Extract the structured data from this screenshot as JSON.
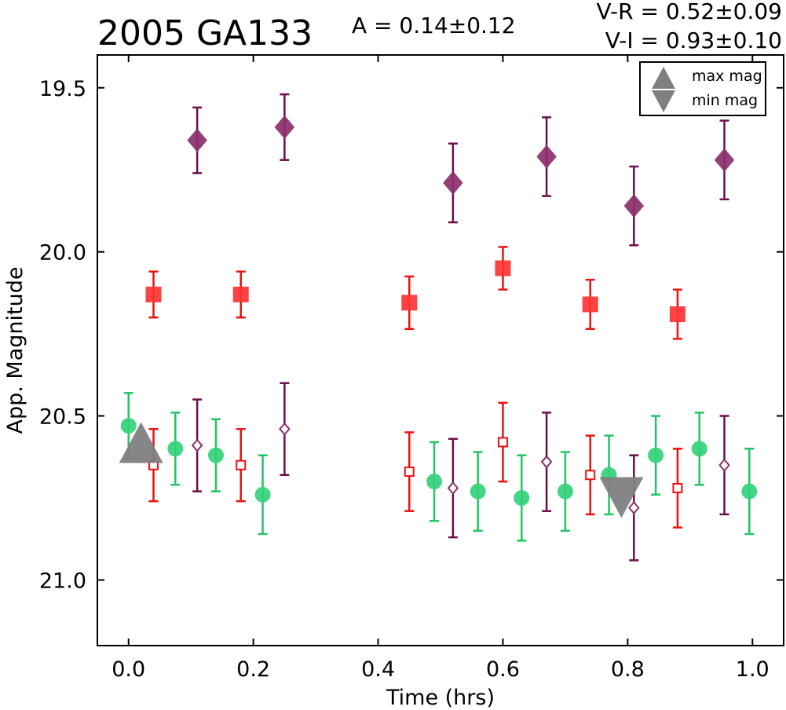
{
  "chart_data": {
    "type": "scatter",
    "title": "2005 GA133",
    "amplitude_text": "A  = 0.14±0.12",
    "color_indices": [
      "V-R = 0.52±0.09",
      "V-I  = 0.93±0.10"
    ],
    "xlabel": "Time (hrs)",
    "ylabel": "App. Magnitude",
    "xlim": [
      -0.05,
      1.05
    ],
    "ylim": [
      21.2,
      19.4
    ],
    "y_inverted": true,
    "grid": false,
    "xticks": [
      "0.0",
      "0.2",
      "0.4",
      "0.6",
      "0.8",
      "1.0"
    ],
    "yticks": [
      "19.5",
      "20.0",
      "20.5",
      "21.0"
    ],
    "legend_position": "top-right",
    "legend": [
      {
        "label": "max mag",
        "marker": "triangle-up",
        "color": "#7f7f7f"
      },
      {
        "label": "min mag",
        "marker": "triangle-down",
        "color": "#7f7f7f"
      }
    ],
    "series": [
      {
        "marker": "diamond",
        "fill": true,
        "color": "#8b2f6b",
        "errcolor": "#6b0f4a",
        "points": [
          {
            "x": 0.11,
            "y": 19.66,
            "err": 0.1
          },
          {
            "x": 0.25,
            "y": 19.62,
            "err": 0.1
          },
          {
            "x": 0.52,
            "y": 19.79,
            "err": 0.12
          },
          {
            "x": 0.67,
            "y": 19.71,
            "err": 0.12
          },
          {
            "x": 0.81,
            "y": 19.86,
            "err": 0.12
          },
          {
            "x": 0.955,
            "y": 19.72,
            "err": 0.12
          }
        ]
      },
      {
        "marker": "square",
        "fill": true,
        "color": "#ff3333",
        "errcolor": "#ee1111",
        "points": [
          {
            "x": 0.04,
            "y": 20.13,
            "err": 0.07
          },
          {
            "x": 0.18,
            "y": 20.13,
            "err": 0.07
          },
          {
            "x": 0.45,
            "y": 20.155,
            "err": 0.08
          },
          {
            "x": 0.6,
            "y": 20.05,
            "err": 0.065
          },
          {
            "x": 0.74,
            "y": 20.16,
            "err": 0.075
          },
          {
            "x": 0.88,
            "y": 20.19,
            "err": 0.075
          }
        ]
      },
      {
        "marker": "circle",
        "fill": true,
        "color": "#33d17a",
        "errcolor": "#22c466",
        "points": [
          {
            "x": 0.0,
            "y": 20.53,
            "err": 0.1
          },
          {
            "x": 0.075,
            "y": 20.6,
            "err": 0.11
          },
          {
            "x": 0.14,
            "y": 20.62,
            "err": 0.11
          },
          {
            "x": 0.215,
            "y": 20.74,
            "err": 0.12
          },
          {
            "x": 0.49,
            "y": 20.7,
            "err": 0.12
          },
          {
            "x": 0.56,
            "y": 20.73,
            "err": 0.12
          },
          {
            "x": 0.63,
            "y": 20.75,
            "err": 0.13
          },
          {
            "x": 0.7,
            "y": 20.73,
            "err": 0.12
          },
          {
            "x": 0.77,
            "y": 20.68,
            "err": 0.12
          },
          {
            "x": 0.845,
            "y": 20.62,
            "err": 0.12
          },
          {
            "x": 0.915,
            "y": 20.6,
            "err": 0.11
          },
          {
            "x": 0.995,
            "y": 20.73,
            "err": 0.13
          }
        ]
      },
      {
        "marker": "square",
        "fill": false,
        "color": "#ee1111",
        "errcolor": "#ee1111",
        "points": [
          {
            "x": 0.04,
            "y": 20.65,
            "err": 0.11
          },
          {
            "x": 0.18,
            "y": 20.65,
            "err": 0.11
          },
          {
            "x": 0.45,
            "y": 20.67,
            "err": 0.12
          },
          {
            "x": 0.6,
            "y": 20.58,
            "err": 0.12
          },
          {
            "x": 0.74,
            "y": 20.68,
            "err": 0.12
          },
          {
            "x": 0.88,
            "y": 20.72,
            "err": 0.12
          }
        ]
      },
      {
        "marker": "diamond",
        "fill": false,
        "color": "#8b2f6b",
        "errcolor": "#6b0f4a",
        "points": [
          {
            "x": 0.11,
            "y": 20.59,
            "err": 0.14
          },
          {
            "x": 0.25,
            "y": 20.54,
            "err": 0.14
          },
          {
            "x": 0.52,
            "y": 20.72,
            "err": 0.15
          },
          {
            "x": 0.67,
            "y": 20.64,
            "err": 0.15
          },
          {
            "x": 0.81,
            "y": 20.78,
            "err": 0.16
          },
          {
            "x": 0.955,
            "y": 20.65,
            "err": 0.15
          }
        ]
      }
    ],
    "extrema": [
      {
        "kind": "max",
        "x": 0.02,
        "y": 20.61,
        "marker": "triangle-up",
        "color": "#7f7f7f"
      },
      {
        "kind": "min",
        "x": 0.79,
        "y": 20.72,
        "marker": "triangle-down",
        "color": "#7f7f7f"
      }
    ]
  }
}
